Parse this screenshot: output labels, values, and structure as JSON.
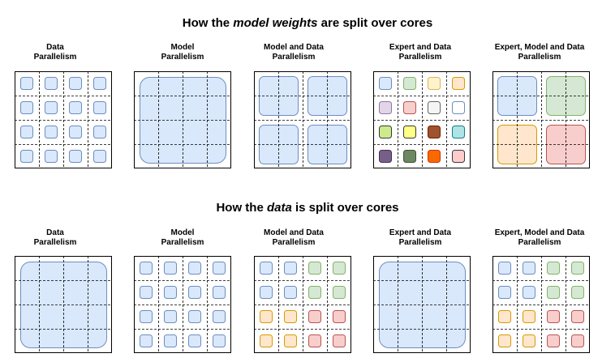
{
  "colors": {
    "blue": "#dae8fc",
    "blue_stroke": "#6c8ebf",
    "green": "#d5e8d4",
    "green_stroke": "#82b366",
    "orange": "#ffe6cc",
    "orange_stroke": "#d79b00",
    "red": "#f8cecc",
    "red_stroke": "#b85450",
    "yellow_light": "#fff2cc",
    "yellow_light_stroke": "#d6b656",
    "purple_light": "#e1d5e7",
    "purple_light_stroke": "#9673a6",
    "grey_light": "#f5f5f5",
    "grey_light_stroke": "#666666",
    "white": "#ffffff",
    "black_stroke": "#000000",
    "lime": "#cdeb8b",
    "lime_stroke": "#36393d",
    "yellow": "#ffff88",
    "yellow_stroke": "#36393d",
    "brown": "#a0522d",
    "brown_stroke": "#6d1f00",
    "cyan": "#b0e3e6",
    "cyan_stroke": "#0e8088",
    "purple": "#76608a",
    "purple_stroke": "#432d57",
    "dark_green": "#6d8764",
    "dark_green_stroke": "#3a5431",
    "orange_strong": "#fa6800",
    "orange_strong_stroke": "#c73500",
    "pink": "#ffcccc",
    "pink_stroke": "#36393d"
  },
  "sections": [
    {
      "title_before": "How the ",
      "title_emphasis": "model weights",
      "title_after": " are split over cores",
      "panels": [
        {
          "label_line1": "Data",
          "label_line2": "Parallelism",
          "mode": "cells",
          "colors": [
            "blue",
            "blue",
            "blue",
            "blue",
            "blue",
            "blue",
            "blue",
            "blue",
            "blue",
            "blue",
            "blue",
            "blue",
            "blue",
            "blue",
            "blue",
            "blue"
          ]
        },
        {
          "label_line1": "Model",
          "label_line2": "Parallelism",
          "mode": "blocks",
          "blocks": [
            {
              "span": [
                0,
                0,
                4,
                4
              ],
              "color": "blue"
            }
          ]
        },
        {
          "label_line1": "Model and Data",
          "label_line2": "Parallelism",
          "mode": "blocks",
          "blocks": [
            {
              "span": [
                0,
                0,
                2,
                2
              ],
              "color": "blue"
            },
            {
              "span": [
                2,
                0,
                2,
                2
              ],
              "color": "blue"
            },
            {
              "span": [
                0,
                2,
                2,
                2
              ],
              "color": "blue"
            },
            {
              "span": [
                2,
                2,
                2,
                2
              ],
              "color": "blue"
            }
          ]
        },
        {
          "label_line1": "Expert and Data",
          "label_line2": "Parallelism",
          "mode": "cells",
          "colors": [
            "blue",
            "green",
            "yellow_light",
            "orange",
            "purple_light",
            "red",
            "grey_light",
            "white",
            "lime",
            "yellow",
            "brown",
            "cyan",
            "purple",
            "dark_green",
            "orange_strong",
            "pink"
          ]
        },
        {
          "label_line1": "Expert, Model and Data",
          "label_line2": "Parallelism",
          "mode": "blocks",
          "blocks": [
            {
              "span": [
                0,
                0,
                2,
                2
              ],
              "color": "blue"
            },
            {
              "span": [
                2,
                0,
                2,
                2
              ],
              "color": "green"
            },
            {
              "span": [
                0,
                2,
                2,
                2
              ],
              "color": "orange"
            },
            {
              "span": [
                2,
                2,
                2,
                2
              ],
              "color": "red"
            }
          ]
        }
      ]
    },
    {
      "title_before": "How the ",
      "title_emphasis": "data",
      "title_after": " is split over cores",
      "panels": [
        {
          "label_line1": "Data",
          "label_line2": "Parallelism",
          "mode": "blocks",
          "blocks": [
            {
              "span": [
                0,
                0,
                4,
                4
              ],
              "color": "blue"
            }
          ]
        },
        {
          "label_line1": "Model",
          "label_line2": "Parallelism",
          "mode": "cells",
          "colors": [
            "blue",
            "blue",
            "blue",
            "blue",
            "blue",
            "blue",
            "blue",
            "blue",
            "blue",
            "blue",
            "blue",
            "blue",
            "blue",
            "blue",
            "blue",
            "blue"
          ]
        },
        {
          "label_line1": "Model and Data",
          "label_line2": "Parallelism",
          "mode": "cells",
          "colors": [
            "blue",
            "blue",
            "green",
            "green",
            "blue",
            "blue",
            "green",
            "green",
            "orange",
            "orange",
            "red",
            "red",
            "orange",
            "orange",
            "red",
            "red"
          ]
        },
        {
          "label_line1": "Expert and Data",
          "label_line2": "Parallelism",
          "mode": "blocks",
          "blocks": [
            {
              "span": [
                0,
                0,
                4,
                4
              ],
              "color": "blue"
            }
          ]
        },
        {
          "label_line1": "Expert, Model and Data",
          "label_line2": "Parallelism",
          "mode": "cells",
          "colors": [
            "blue",
            "blue",
            "green",
            "green",
            "blue",
            "blue",
            "green",
            "green",
            "orange",
            "orange",
            "red",
            "red",
            "orange",
            "orange",
            "red",
            "red"
          ]
        }
      ]
    }
  ]
}
